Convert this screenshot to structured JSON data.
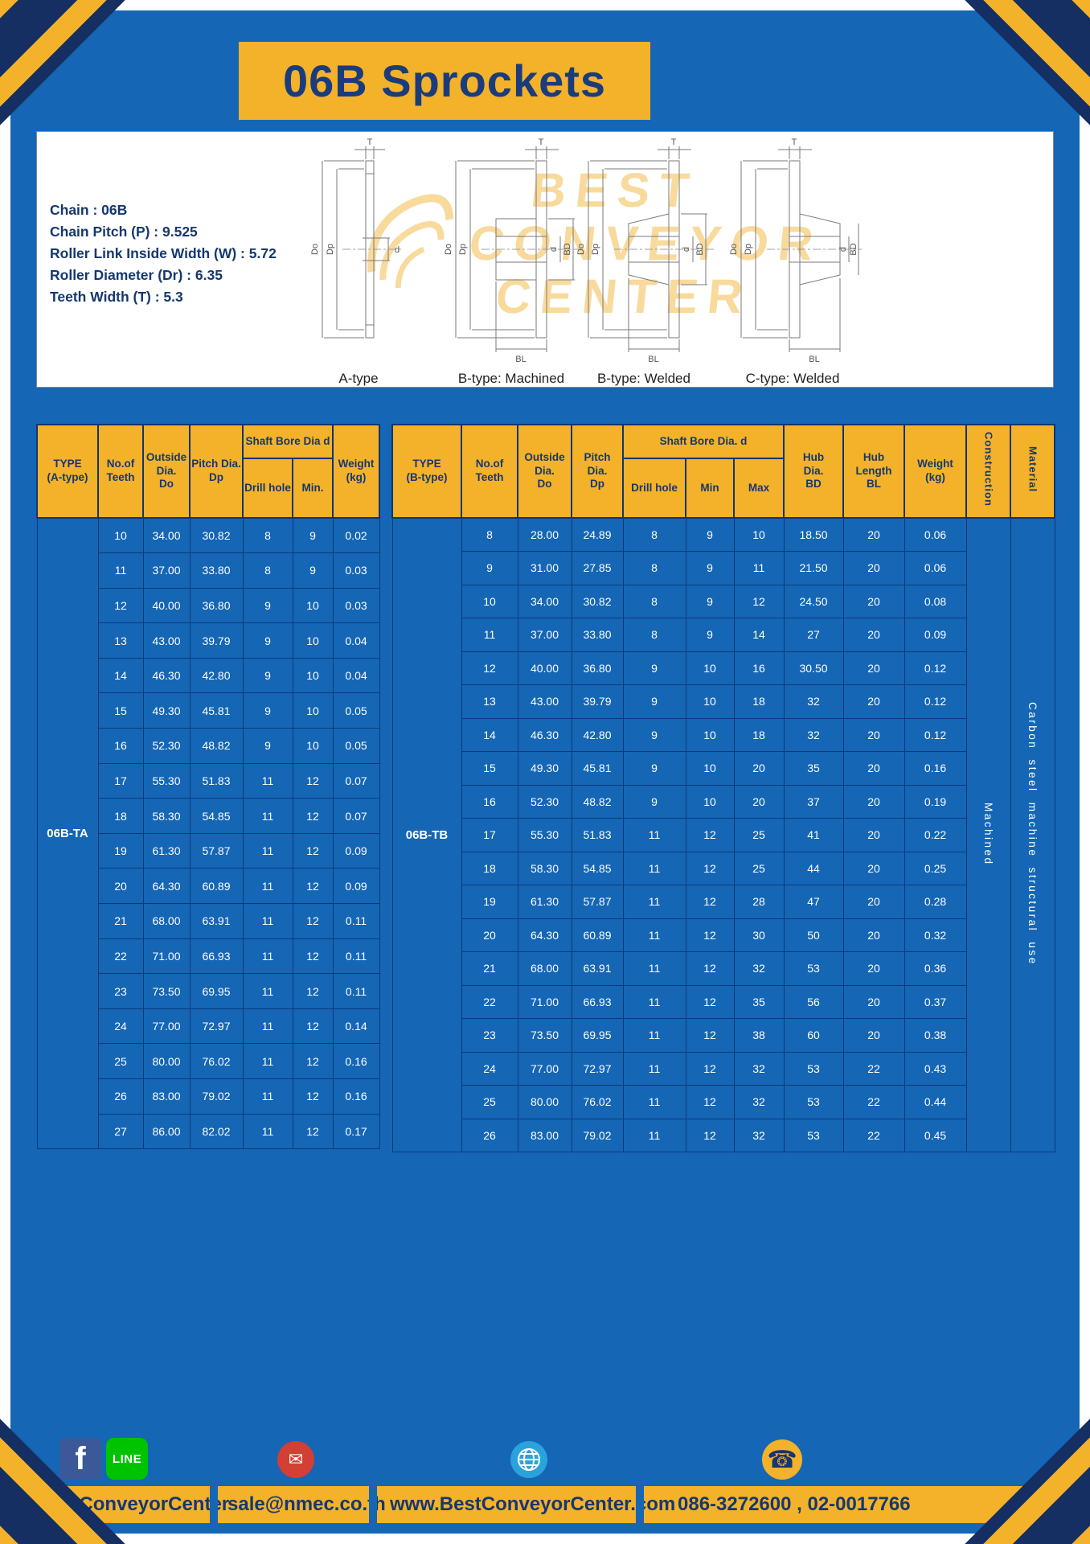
{
  "page": {
    "title": "06B Sprockets"
  },
  "specs": {
    "chain": "Chain : 06B",
    "pitch": "Chain Pitch (P) : 9.525",
    "roller_width": "Roller Link Inside Width (W) : 5.72",
    "roller_dia": "Roller Diameter (Dr) : 6.35",
    "teeth_width": "Teeth Width (T) : 5.3"
  },
  "watermark": {
    "line1": "BEST",
    "line2": "CONVEYOR",
    "line3": "CENTER"
  },
  "dims": {
    "t": "T",
    "do": "Do",
    "dp": "Dp",
    "d": "d",
    "bd": "BD",
    "bl": "BL"
  },
  "diagrams": {
    "a": "A-type",
    "b1": "B-type: Machined",
    "b2": "B-type: Welded",
    "c": "C-type: Welded"
  },
  "table_a": {
    "type_label": "06B-TA",
    "headers": {
      "type": "TYPE\n(A-type)",
      "teeth": "No.of\nTeeth",
      "outside": "Outside\nDia.\nDo",
      "pitch": "Pitch Dia.\nDp",
      "shaft_bore": "Shaft Bore Dia d",
      "drill": "Drill hole",
      "min": "Min.",
      "weight": "Weight\n(kg)"
    },
    "rows": [
      [
        "10",
        "34.00",
        "30.82",
        "8",
        "9",
        "0.02"
      ],
      [
        "11",
        "37.00",
        "33.80",
        "8",
        "9",
        "0.03"
      ],
      [
        "12",
        "40.00",
        "36.80",
        "9",
        "10",
        "0.03"
      ],
      [
        "13",
        "43.00",
        "39.79",
        "9",
        "10",
        "0.04"
      ],
      [
        "14",
        "46.30",
        "42.80",
        "9",
        "10",
        "0.04"
      ],
      [
        "15",
        "49.30",
        "45.81",
        "9",
        "10",
        "0.05"
      ],
      [
        "16",
        "52.30",
        "48.82",
        "9",
        "10",
        "0.05"
      ],
      [
        "17",
        "55.30",
        "51.83",
        "11",
        "12",
        "0.07"
      ],
      [
        "18",
        "58.30",
        "54.85",
        "11",
        "12",
        "0.07"
      ],
      [
        "19",
        "61.30",
        "57.87",
        "11",
        "12",
        "0.09"
      ],
      [
        "20",
        "64.30",
        "60.89",
        "11",
        "12",
        "0.09"
      ],
      [
        "21",
        "68.00",
        "63.91",
        "11",
        "12",
        "0.11"
      ],
      [
        "22",
        "71.00",
        "66.93",
        "11",
        "12",
        "0.11"
      ],
      [
        "23",
        "73.50",
        "69.95",
        "11",
        "12",
        "0.11"
      ],
      [
        "24",
        "77.00",
        "72.97",
        "11",
        "12",
        "0.14"
      ],
      [
        "25",
        "80.00",
        "76.02",
        "11",
        "12",
        "0.16"
      ],
      [
        "26",
        "83.00",
        "79.02",
        "11",
        "12",
        "0.16"
      ],
      [
        "27",
        "86.00",
        "82.02",
        "11",
        "12",
        "0.17"
      ]
    ]
  },
  "table_b": {
    "type_label": "06B-TB",
    "construction_value": "Machined",
    "material_value": "Carbon steel machine structural use",
    "headers": {
      "type": "TYPE\n(B-type)",
      "teeth": "No.of\nTeeth",
      "outside": "Outside\nDia.\nDo",
      "pitch": "Pitch\nDia.\nDp",
      "shaft_bore": "Shaft Bore Dia.  d",
      "drill": "Drill hole",
      "min": "Min",
      "max": "Max",
      "hub_dia": "Hub\nDia.\nBD",
      "hub_length": "Hub\nLength\nBL",
      "weight": "Weight\n(kg)",
      "construction": "Construction",
      "material": "Material"
    },
    "rows": [
      [
        "8",
        "28.00",
        "24.89",
        "8",
        "9",
        "10",
        "18.50",
        "20",
        "0.06"
      ],
      [
        "9",
        "31.00",
        "27.85",
        "8",
        "9",
        "11",
        "21.50",
        "20",
        "0.06"
      ],
      [
        "10",
        "34.00",
        "30.82",
        "8",
        "9",
        "12",
        "24.50",
        "20",
        "0.08"
      ],
      [
        "11",
        "37.00",
        "33.80",
        "8",
        "9",
        "14",
        "27",
        "20",
        "0.09"
      ],
      [
        "12",
        "40.00",
        "36.80",
        "9",
        "10",
        "16",
        "30.50",
        "20",
        "0.12"
      ],
      [
        "13",
        "43.00",
        "39.79",
        "9",
        "10",
        "18",
        "32",
        "20",
        "0.12"
      ],
      [
        "14",
        "46.30",
        "42.80",
        "9",
        "10",
        "18",
        "32",
        "20",
        "0.12"
      ],
      [
        "15",
        "49.30",
        "45.81",
        "9",
        "10",
        "20",
        "35",
        "20",
        "0.16"
      ],
      [
        "16",
        "52.30",
        "48.82",
        "9",
        "10",
        "20",
        "37",
        "20",
        "0.19"
      ],
      [
        "17",
        "55.30",
        "51.83",
        "11",
        "12",
        "25",
        "41",
        "20",
        "0.22"
      ],
      [
        "18",
        "58.30",
        "54.85",
        "11",
        "12",
        "25",
        "44",
        "20",
        "0.25"
      ],
      [
        "19",
        "61.30",
        "57.87",
        "11",
        "12",
        "28",
        "47",
        "20",
        "0.28"
      ],
      [
        "20",
        "64.30",
        "60.89",
        "11",
        "12",
        "30",
        "50",
        "20",
        "0.32"
      ],
      [
        "21",
        "68.00",
        "63.91",
        "11",
        "12",
        "32",
        "53",
        "20",
        "0.36"
      ],
      [
        "22",
        "71.00",
        "66.93",
        "11",
        "12",
        "35",
        "56",
        "20",
        "0.37"
      ],
      [
        "23",
        "73.50",
        "69.95",
        "11",
        "12",
        "38",
        "60",
        "20",
        "0.38"
      ],
      [
        "24",
        "77.00",
        "72.97",
        "11",
        "12",
        "32",
        "53",
        "22",
        "0.43"
      ],
      [
        "25",
        "80.00",
        "76.02",
        "11",
        "12",
        "32",
        "53",
        "22",
        "0.44"
      ],
      [
        "26",
        "83.00",
        "79.02",
        "11",
        "12",
        "32",
        "53",
        "22",
        "0.45"
      ]
    ]
  },
  "footer": {
    "social": "@BestConveyorCenter",
    "email": "sale@nmec.co.th",
    "website": "www.BestConveyorCenter.com",
    "phone": "086-3272600 , 02-0017766",
    "icons": {
      "facebook": "f",
      "line": "LINE",
      "email": "✉",
      "phone": "☎"
    }
  },
  "colors": {
    "page_blue": "#1566b5",
    "accent_yellow": "#f3b229",
    "navy_text": "#14386f"
  }
}
